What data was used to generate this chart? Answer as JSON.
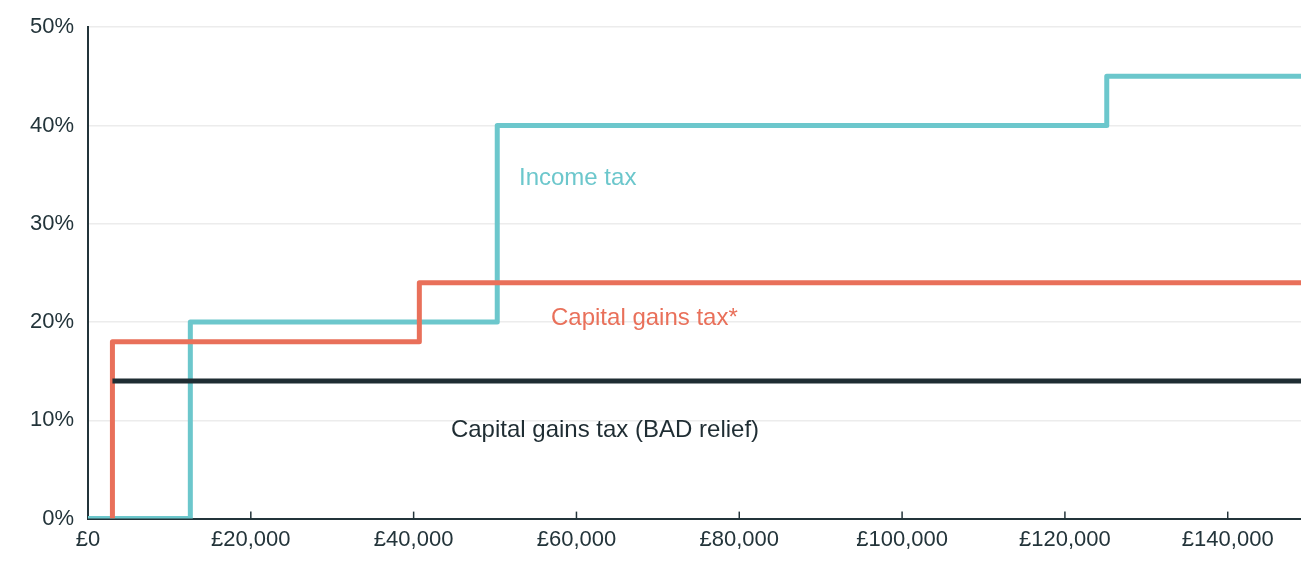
{
  "chart_data": {
    "type": "step",
    "xlim": [
      0,
      149000
    ],
    "ylim": [
      0,
      50
    ],
    "xticks": [
      {
        "value": 0,
        "label": "£0"
      },
      {
        "value": 20000,
        "label": "£20,000"
      },
      {
        "value": 40000,
        "label": "£40,000"
      },
      {
        "value": 60000,
        "label": "£60,000"
      },
      {
        "value": 80000,
        "label": "£80,000"
      },
      {
        "value": 100000,
        "label": "£100,000"
      },
      {
        "value": 120000,
        "label": "£120,000"
      },
      {
        "value": 140000,
        "label": "£140,000"
      }
    ],
    "yticks": [
      {
        "value": 0,
        "label": "0%"
      },
      {
        "value": 10,
        "label": "10%"
      },
      {
        "value": 20,
        "label": "20%"
      },
      {
        "value": 30,
        "label": "30%"
      },
      {
        "value": 40,
        "label": "40%"
      },
      {
        "value": 50,
        "label": "50%"
      }
    ],
    "grid": "y",
    "legend": false,
    "marker": "none",
    "line_style": "solid",
    "series": [
      {
        "name": "Income tax",
        "color": "#6cc7cc",
        "x": [
          0,
          12570,
          50270,
          125140,
          149000
        ],
        "values": [
          0,
          20,
          40,
          45,
          45
        ]
      },
      {
        "name": "Capital gains tax*",
        "color": "#e9705a",
        "x": [
          3000,
          3000,
          40700,
          149000
        ],
        "values": [
          0,
          18,
          24,
          24
        ]
      },
      {
        "name": "Capital gains tax (BAD relief)",
        "color": "#1f2d33",
        "x": [
          3000,
          149000
        ],
        "values": [
          14,
          14
        ]
      }
    ]
  }
}
